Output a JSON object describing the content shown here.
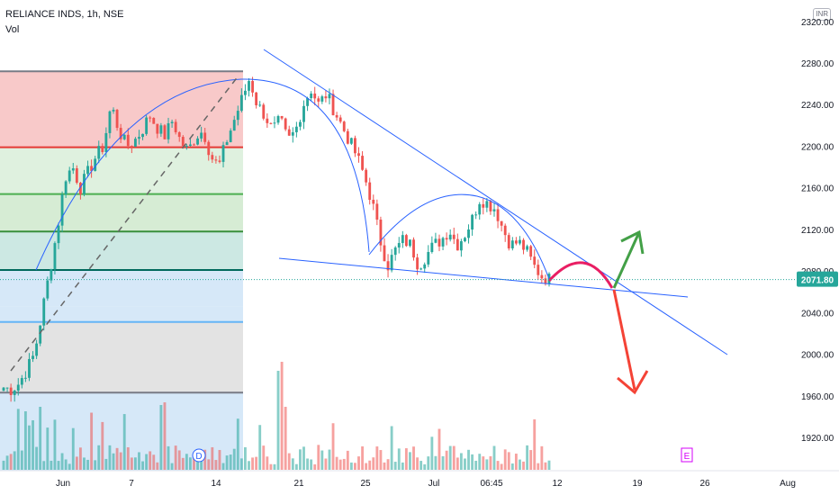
{
  "header": {
    "title": "RELIANCE INDS, 1h, NSE",
    "vol_label": "Vol",
    "currency": "INR"
  },
  "chart_data": {
    "type": "candlestick",
    "y_axis": {
      "ticks": [
        1920,
        1960,
        2000,
        2040,
        2080,
        2120,
        2160,
        2200,
        2240,
        2280,
        2320
      ],
      "ylim": [
        1888,
        2336
      ]
    },
    "x_axis": {
      "labels": [
        "Jun",
        "7",
        "14",
        "21",
        "25",
        "Jul",
        "06:45",
        "12",
        "19",
        "26",
        "Aug"
      ]
    },
    "last_price": "2071.80",
    "colors": {
      "up": "#26a69a",
      "down": "#ef5350",
      "trendline": "#2962ff",
      "prediction": "#e91e63",
      "up_arrow": "#43a047",
      "down_arrow": "#f44336"
    },
    "fib_zones": [
      {
        "from": 2272,
        "to": 2199,
        "fill": "#f8c9c9"
      },
      {
        "from": 2199,
        "to": 2154,
        "fill": "#dff1df"
      },
      {
        "from": 2154,
        "to": 2118,
        "fill": "#d6ecd4"
      },
      {
        "from": 2118,
        "to": 2081,
        "fill": "#cce8e3"
      },
      {
        "from": 2081,
        "to": 2046,
        "fill": "#d6e8f8"
      },
      {
        "from": 2046,
        "to": 2031,
        "fill": "#d6e8f8"
      },
      {
        "from": 2031,
        "to": 1963,
        "fill": "#e3e3e3"
      },
      {
        "from": 1963,
        "to": 1888,
        "fill": "#d6e8f8"
      }
    ],
    "fib_lines": [
      {
        "value": 2272,
        "color": "#787b86"
      },
      {
        "value": 2199,
        "color": "#e53935"
      },
      {
        "value": 2154,
        "color": "#4caf50"
      },
      {
        "value": 2118,
        "color": "#388e3c"
      },
      {
        "value": 2081,
        "color": "#00695c"
      },
      {
        "value": 2031,
        "color": "#64b5f6"
      },
      {
        "value": 1963,
        "color": "#787b86"
      }
    ],
    "ohlc_path": [
      1968,
      1966,
      1972,
      1985,
      2000,
      2040,
      2080,
      2120,
      2170,
      2180,
      2160,
      2175,
      2190,
      2200,
      2240,
      2215,
      2200,
      2205,
      2215,
      2230,
      2218,
      2210,
      2225,
      2205,
      2195,
      2210,
      2215,
      2190,
      2180,
      2205,
      2225,
      2245,
      2265,
      2240,
      2230,
      2215,
      2225,
      2205,
      2215,
      2240,
      2255,
      2240,
      2250,
      2235,
      2220,
      2205,
      2190,
      2170,
      2145,
      2110,
      2085,
      2100,
      2110,
      2105,
      2085,
      2095,
      2105,
      2110,
      2120,
      2105,
      2115,
      2130,
      2150,
      2145,
      2140,
      2120,
      2105,
      2108,
      2100,
      2085,
      2075,
      2072
    ],
    "markers": {
      "dividend": "D",
      "earnings": "E"
    }
  }
}
